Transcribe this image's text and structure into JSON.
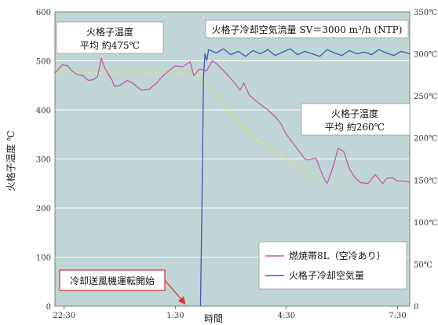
{
  "chart_data": {
    "type": "line",
    "xlabel": "時間",
    "ylabel": "火格子温度 ℃",
    "x_ticks": [
      "22:30",
      "1:30",
      "4:30",
      "7:30"
    ],
    "ylim": [
      0,
      600
    ],
    "y_ticks": [
      0,
      100,
      200,
      300,
      400,
      500,
      600
    ],
    "y2lim": [
      0,
      350
    ],
    "y2_ticks": [
      "0",
      "50℃",
      "100℃",
      "150℃",
      "200℃",
      "250℃",
      "300℃",
      "350℃"
    ],
    "grid": true,
    "legend_position": "bottom-right",
    "x_range_hours": [
      -0.25,
      9.33
    ],
    "series": [
      {
        "name": "燃焼帯8L（空冷あり）",
        "color": "#c45aa8",
        "axis": "left",
        "x": [
          -0.25,
          -0.05,
          0.1,
          0.2,
          0.35,
          0.5,
          0.65,
          0.8,
          0.9,
          1.0,
          1.1,
          1.2,
          1.3,
          1.35,
          1.5,
          1.7,
          1.85,
          2.0,
          2.1,
          2.3,
          2.5,
          2.65,
          2.8,
          3.0,
          3.2,
          3.4,
          3.5,
          3.65,
          3.85,
          4.0,
          4.1,
          4.3,
          4.45,
          4.6,
          4.75,
          4.85,
          5.0,
          5.15,
          5.35,
          5.5,
          5.7,
          5.85,
          6.0,
          6.2,
          6.35,
          6.5,
          6.6,
          6.8,
          7.0,
          7.1,
          7.25,
          7.4,
          7.55,
          7.7,
          7.85,
          8.0,
          8.2,
          8.4,
          8.6,
          8.7,
          8.85,
          9.0,
          9.2,
          9.33
        ],
        "y": [
          475,
          492,
          490,
          480,
          472,
          470,
          460,
          462,
          468,
          505,
          485,
          472,
          460,
          448,
          450,
          460,
          455,
          445,
          440,
          442,
          455,
          468,
          478,
          490,
          488,
          498,
          470,
          483,
          480,
          500,
          495,
          480,
          468,
          455,
          440,
          455,
          430,
          420,
          408,
          400,
          386,
          372,
          350,
          330,
          315,
          300,
          298,
          302,
          262,
          250,
          282,
          322,
          315,
          280,
          262,
          252,
          250,
          268,
          250,
          260,
          262,
          255,
          255,
          252
        ]
      },
      {
        "name": "火格子冷却空気量",
        "color": "#3f57b5",
        "axis": "right",
        "x": [
          -0.25,
          3.68,
          3.72,
          3.76,
          3.8,
          3.85,
          3.9,
          4.1,
          4.3,
          4.5,
          4.7,
          4.9,
          5.1,
          5.3,
          5.5,
          5.7,
          5.9,
          6.1,
          6.3,
          6.5,
          6.7,
          6.9,
          7.1,
          7.3,
          7.5,
          7.7,
          7.9,
          8.1,
          8.3,
          8.5,
          8.7,
          8.9,
          9.1,
          9.33
        ],
        "y": [
          null,
          0,
          120,
          270,
          300,
          292,
          305,
          301,
          306,
          299,
          303,
          297,
          304,
          300,
          305,
          298,
          302,
          306,
          299,
          303,
          300,
          297,
          305,
          301,
          298,
          304,
          300,
          302,
          299,
          305,
          301,
          298,
          303,
          300
        ]
      }
    ],
    "reference_lines": [
      {
        "color": "#e8e84a",
        "x": [
          -0.25,
          3.55,
          4.2,
          5.0,
          6.0,
          6.8,
          9.33
        ],
        "y": [
          475,
          475,
          420,
          350,
          300,
          258,
          258
        ]
      }
    ],
    "annotations": {
      "avg_before_title": "火格子温度",
      "avg_before_value": "平均 約475℃",
      "avg_after_title": "火格子温度",
      "avg_after_value": "平均 約260℃",
      "airflow_label": "火格子冷却空気流量 SV＝3000 m³/h (NTP)",
      "fan_start": "冷却送風機運転開始"
    }
  }
}
